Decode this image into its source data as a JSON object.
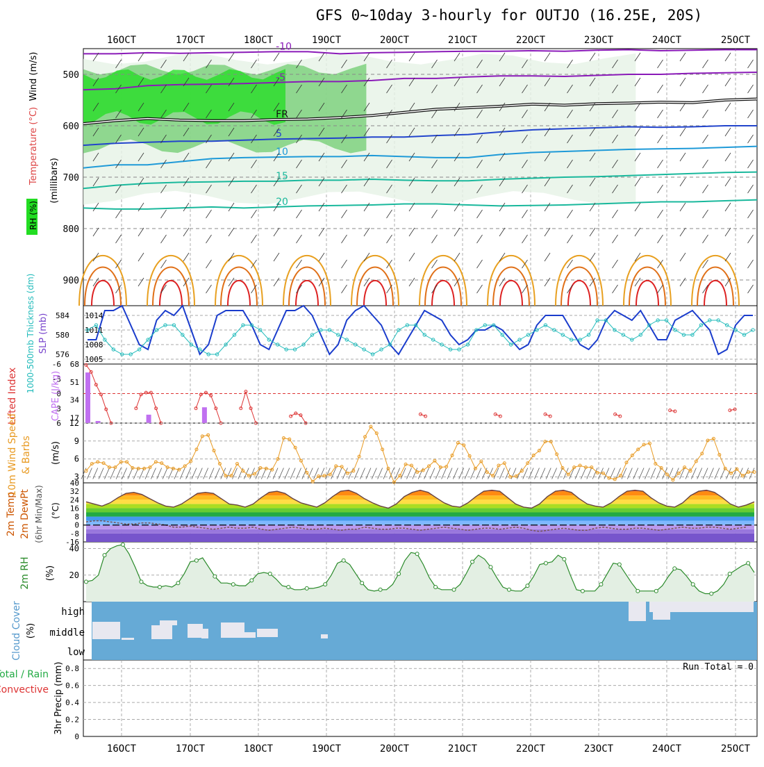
{
  "title": "GFS 0~10day 3-hourly for OUTJO (16.25E, 20S)",
  "colors": {
    "rh_green": "#22dd22",
    "rh_mid": "#70cc70",
    "rh_light": "#e6f2e6",
    "temp_purple": "#8a1ab8",
    "temp_blue": "#2244cc",
    "temp_sky": "#1e9ad8",
    "temp_teal": "#19b89c",
    "temp_orange": "#e8a020",
    "temp_red": "#dd2222",
    "slp": "#1a3ccc",
    "thickness": "#22bbbb",
    "cape": "#c070f0",
    "li": "#dd3333",
    "wind": "#e89a22",
    "rh2m": "#2a8a2a",
    "cloud": "#66aad6",
    "cloud_gap": "#e8e8f0"
  },
  "left_labels": {
    "upper": {
      "rh": "RH (%)",
      "temp": "Temperature (°C)",
      "wind": "Wind (m/s)",
      "pressure": "(millibars)"
    },
    "slp": {
      "thickness": "1000-500mb Thickness (dm)",
      "slp": "SLP (mb)"
    },
    "cape": {
      "li": "Lifted Index",
      "cape": "CAPE (J/kg)"
    },
    "wind10": {
      "a": "10m Wind Speed",
      "b": "& Barbs",
      "unit": "(m/s)"
    },
    "temp2m": {
      "a": "2m Temp",
      "b": "2m DewPt",
      "c": "(6hr Min/Max)",
      "unit": "(°C)"
    },
    "rh2m": {
      "a": "2m RH",
      "unit": "(%)"
    },
    "cloud": {
      "a": "Cloud Cover",
      "unit": "(%)"
    },
    "precip": {
      "a": "Total / Rain",
      "b": "Convective",
      "c": "3hr Precip (mm)"
    }
  },
  "chart_data": [
    {
      "type": "heatmap",
      "name": "upper-air",
      "x_ticks": [
        "16OCT",
        "17OCT",
        "18OCT",
        "19OCT",
        "20OCT",
        "21OCT",
        "22OCT",
        "23OCT",
        "24OCT",
        "25OCT"
      ],
      "ylim": [
        450,
        950
      ],
      "y_ticks": [
        500,
        600,
        700,
        800,
        900
      ],
      "temperature_contours": [
        {
          "label": "-10",
          "p": [
            460,
            460,
            458,
            459,
            458,
            457,
            456,
            456,
            460,
            458,
            457,
            456,
            455,
            455,
            454,
            455,
            453,
            452,
            454,
            453,
            452,
            452
          ]
        },
        {
          "label": "-5",
          "p": [
            530,
            528,
            522,
            520,
            519,
            518,
            516,
            514,
            514,
            512,
            508,
            508,
            505,
            503,
            503,
            504,
            502,
            500,
            500,
            498,
            497,
            496
          ]
        },
        {
          "label": "FR",
          "p": [
            596,
            590,
            586,
            589,
            590,
            590,
            588,
            587,
            584,
            580,
            574,
            568,
            565,
            562,
            558,
            560,
            557,
            556,
            554,
            555,
            550,
            548
          ]
        },
        {
          "label": "5",
          "p": [
            638,
            634,
            632,
            630,
            630,
            628,
            626,
            625,
            624,
            622,
            622,
            619,
            617,
            612,
            608,
            606,
            604,
            602,
            603,
            602,
            600,
            600
          ]
        },
        {
          "label": "10",
          "p": [
            682,
            676,
            676,
            670,
            664,
            662,
            661,
            660,
            660,
            658,
            660,
            662,
            662,
            656,
            652,
            650,
            648,
            646,
            645,
            644,
            642,
            640
          ]
        },
        {
          "label": "15",
          "p": [
            722,
            716,
            712,
            710,
            709,
            708,
            708,
            706,
            706,
            704,
            706,
            707,
            707,
            704,
            702,
            700,
            699,
            697,
            695,
            693,
            691,
            690
          ]
        },
        {
          "label": "20",
          "p": [
            760,
            762,
            762,
            760,
            758,
            760,
            758,
            756,
            755,
            754,
            752,
            752,
            754,
            756,
            755,
            754,
            752,
            750,
            748,
            748,
            746,
            744
          ]
        }
      ],
      "rh_zones": [
        {
          "level": "high",
          "x0": 0,
          "x1": 0.3,
          "p0": 500,
          "p1": 585
        },
        {
          "level": "mid",
          "x0": 0,
          "x1": 0.42,
          "p0": 490,
          "p1": 640
        },
        {
          "level": "low",
          "x0": 0,
          "x1": 0.82,
          "p0": 470,
          "p1": 740
        }
      ]
    },
    {
      "type": "line",
      "name": "slp-thickness",
      "series": [
        {
          "name": "SLP",
          "values": [
            1009,
            1009,
            1015,
            1015,
            1016,
            1012,
            1008,
            1007,
            1013,
            1015,
            1014,
            1016,
            1011,
            1006,
            1008,
            1014,
            1015,
            1015,
            1015,
            1012,
            1008,
            1007,
            1011,
            1015,
            1015,
            1016,
            1014,
            1010,
            1006,
            1008,
            1013,
            1015,
            1016,
            1014,
            1012,
            1008,
            1006,
            1009,
            1012,
            1015,
            1014,
            1013,
            1010,
            1008,
            1009,
            1011,
            1011,
            1012,
            1011,
            1009,
            1007,
            1008,
            1012,
            1014,
            1014,
            1014,
            1011,
            1008,
            1007,
            1009,
            1013,
            1015,
            1014,
            1013,
            1015,
            1012,
            1009,
            1009,
            1013,
            1014,
            1015,
            1013,
            1011,
            1006,
            1007,
            1012,
            1014,
            1014
          ]
        },
        {
          "name": "Thickness",
          "values": [
            581,
            582,
            579,
            577,
            576,
            576,
            577,
            579,
            581,
            582,
            582,
            580,
            578,
            577,
            576,
            576,
            578,
            580,
            582,
            582,
            581,
            579,
            578,
            577,
            577,
            578,
            580,
            581,
            581,
            580,
            579,
            578,
            577,
            576,
            577,
            578,
            581,
            582,
            582,
            580,
            579,
            578,
            577,
            577,
            578,
            581,
            582,
            582,
            580,
            578,
            579,
            580,
            581,
            582,
            581,
            580,
            579,
            579,
            580,
            583,
            583,
            581,
            580,
            579,
            580,
            582,
            583,
            583,
            581,
            580,
            580,
            582,
            583,
            583,
            582,
            581,
            580,
            581
          ]
        }
      ],
      "ylim_slp": [
        1004,
        1016
      ],
      "y_ticks_slp": [
        1005,
        1008,
        1011,
        1014
      ],
      "ylim_thk": [
        574,
        586
      ],
      "y_ticks_thk": [
        576,
        580,
        584
      ]
    },
    {
      "type": "bar",
      "name": "cape-li",
      "cape_bars": [
        {
          "i": 0,
          "v": 60
        },
        {
          "i": 2,
          "v": 14
        },
        {
          "i": 12,
          "v": 20
        },
        {
          "i": 23,
          "v": 27
        },
        {
          "i": 25,
          "v": 3
        }
      ],
      "li_points": [
        [
          0,
          -5.8
        ],
        [
          1,
          -4.4
        ],
        [
          2,
          -1.8
        ],
        [
          3,
          0.2
        ],
        [
          4,
          3.2
        ],
        [
          5,
          6
        ],
        [
          10,
          3
        ],
        [
          11,
          0.2
        ],
        [
          12,
          -0.2
        ],
        [
          13,
          -0.2
        ],
        [
          14,
          3
        ],
        [
          15,
          6
        ],
        [
          22,
          3
        ],
        [
          23,
          0.2
        ],
        [
          24,
          -0.2
        ],
        [
          25,
          0.4
        ],
        [
          26,
          3
        ],
        [
          27,
          6
        ],
        [
          31,
          3
        ],
        [
          32,
          -0.4
        ],
        [
          33,
          3
        ],
        [
          34,
          6
        ],
        [
          41,
          4.6
        ],
        [
          42,
          4
        ],
        [
          43,
          4.4
        ],
        [
          44,
          6
        ],
        [
          67,
          4.2
        ],
        [
          68,
          4.6
        ],
        [
          82,
          4.2
        ],
        [
          83,
          4.6
        ],
        [
          92,
          4.2
        ],
        [
          93,
          4.6
        ],
        [
          106,
          4.2
        ],
        [
          107,
          4.6
        ],
        [
          117,
          3.4
        ],
        [
          118,
          3.6
        ],
        [
          129,
          3.4
        ],
        [
          130,
          3.2
        ]
      ],
      "cape_ylim": [
        12,
        68
      ],
      "cape_ticks": [
        17,
        34,
        51,
        68
      ],
      "li_ticks": [
        "-6",
        "-3",
        "0",
        "3",
        "6"
      ]
    },
    {
      "type": "line",
      "name": "wind10m",
      "series": [
        {
          "name": "Speed",
          "values": [
            4,
            5.2,
            5.5,
            5.3,
            4.6,
            4.6,
            5.5,
            5.5,
            4.5,
            4.4,
            4.4,
            4.6,
            5.5,
            5.3,
            4.6,
            4.4,
            4.2,
            4.8,
            5.6,
            7.6,
            9.8,
            10,
            7.4,
            5.2,
            3.2,
            3.2,
            5.2,
            4,
            3.2,
            3.5,
            4.5,
            4.4,
            4.2,
            6,
            9.5,
            9.3,
            7.9,
            5.7,
            3.7,
            2.2,
            3.1,
            3.2,
            3.4,
            4.8,
            4.7,
            3.6,
            4,
            6.4,
            9.7,
            11.4,
            10.3,
            7.6,
            4.4,
            2.1,
            3.2,
            5.1,
            4.9,
            3.8,
            4.1,
            4.8,
            5.7,
            4.6,
            4.7,
            6.6,
            8.7,
            8.3,
            6.5,
            4.4,
            5.6,
            3.8,
            3.2,
            4.9,
            5.3,
            3,
            3.1,
            4,
            5.3,
            6.6,
            7.4,
            8.9,
            8.9,
            6.8,
            4.5,
            3.4,
            4.6,
            4.9,
            4.6,
            4.6,
            3.7,
            3.6,
            2.8,
            2.6,
            3.2,
            5.4,
            6.6,
            7.6,
            8.4,
            8.6,
            5.2,
            4.5,
            3.4,
            2.5,
            3.6,
            4.6,
            4,
            5.6,
            6.9,
            9.1,
            9.4,
            6.7,
            4.4,
            3.6,
            4.3,
            3.2,
            3.8,
            3.8
          ]
        }
      ],
      "ylim": [
        2,
        12
      ],
      "y_ticks": [
        3,
        6,
        9,
        12
      ]
    },
    {
      "type": "area",
      "name": "temp2m",
      "series": [
        {
          "name": "Temp",
          "values": [
            22,
            20,
            18,
            21,
            26,
            30,
            31,
            29,
            25,
            21,
            18,
            17,
            20,
            25,
            30,
            31,
            30,
            25,
            20,
            19,
            17,
            20,
            26,
            31,
            32,
            30,
            25,
            21,
            19,
            17,
            21,
            27,
            32,
            33,
            30,
            25,
            21,
            18,
            16,
            20,
            27,
            31,
            33,
            31,
            26,
            21,
            18,
            17,
            21,
            27,
            32,
            33,
            32,
            26,
            20,
            17,
            16,
            20,
            27,
            32,
            33,
            31,
            25,
            20,
            18,
            17,
            21,
            27,
            32,
            33,
            32,
            26,
            21,
            18,
            17,
            21,
            28,
            32,
            33,
            31,
            26,
            20,
            17,
            19,
            22
          ]
        },
        {
          "name": "DewPt",
          "values": [
            3,
            4,
            4,
            3,
            2,
            1,
            1,
            2,
            2,
            1,
            0,
            -2,
            -2,
            -1,
            -2,
            -3,
            -4,
            -3,
            -2,
            -3,
            -3,
            -2,
            -4,
            -5,
            -4,
            -3,
            -2,
            -3,
            -4,
            -4,
            -3,
            -4,
            -5,
            -4,
            -4,
            -2,
            -3,
            -4,
            -4,
            -3,
            -3,
            -4,
            -5,
            -4,
            -3,
            -2,
            -3,
            -4,
            -5,
            -4,
            -3,
            -3,
            -4,
            -3,
            -2,
            -3,
            -5,
            -6,
            -5,
            -4,
            -3,
            -4,
            -5,
            -5,
            -3,
            -2,
            -3,
            -4,
            -4,
            -3,
            -3,
            -4,
            -5,
            -4,
            -3,
            -2,
            -3,
            -3,
            -2,
            -2,
            -3,
            -4,
            -3,
            -2
          ]
        }
      ],
      "ylim": [
        -16,
        40
      ],
      "y_ticks": [
        40,
        32,
        24,
        16,
        8,
        0,
        -8,
        -16
      ]
    },
    {
      "type": "area",
      "name": "rh2m",
      "series": [
        {
          "name": "RH",
          "values": [
            15,
            16,
            20,
            35,
            40,
            42,
            43,
            36,
            26,
            15,
            12,
            11,
            11,
            12,
            11,
            14,
            21,
            30,
            31,
            33,
            26,
            19,
            14,
            14,
            13,
            12,
            12,
            16,
            21,
            22,
            21,
            17,
            12,
            11,
            9,
            9,
            10,
            10,
            11,
            13,
            20,
            29,
            31,
            28,
            21,
            14,
            9,
            8,
            9,
            9,
            13,
            21,
            31,
            37,
            36,
            28,
            18,
            11,
            9,
            9,
            9,
            13,
            21,
            30,
            35,
            32,
            26,
            18,
            11,
            9,
            8,
            8,
            12,
            19,
            28,
            29,
            30,
            35,
            32,
            20,
            9,
            8,
            8,
            8,
            13,
            21,
            29,
            28,
            21,
            14,
            8,
            8,
            8,
            8,
            12,
            19,
            25,
            24,
            19,
            13,
            8,
            6,
            6,
            8,
            13,
            21,
            24,
            27,
            29,
            22
          ]
        }
      ],
      "ylim": [
        0,
        45
      ],
      "y_ticks": [
        20,
        40
      ]
    },
    {
      "type": "heatmap",
      "name": "cloud",
      "categories": [
        "high",
        "middle",
        "low"
      ]
    },
    {
      "type": "bar",
      "name": "precip",
      "annotation": "Run Total = 0",
      "ylim": [
        0,
        0.9
      ],
      "y_ticks": [
        "0.8",
        "0.6",
        "0.4",
        "0.2",
        "0"
      ]
    }
  ]
}
